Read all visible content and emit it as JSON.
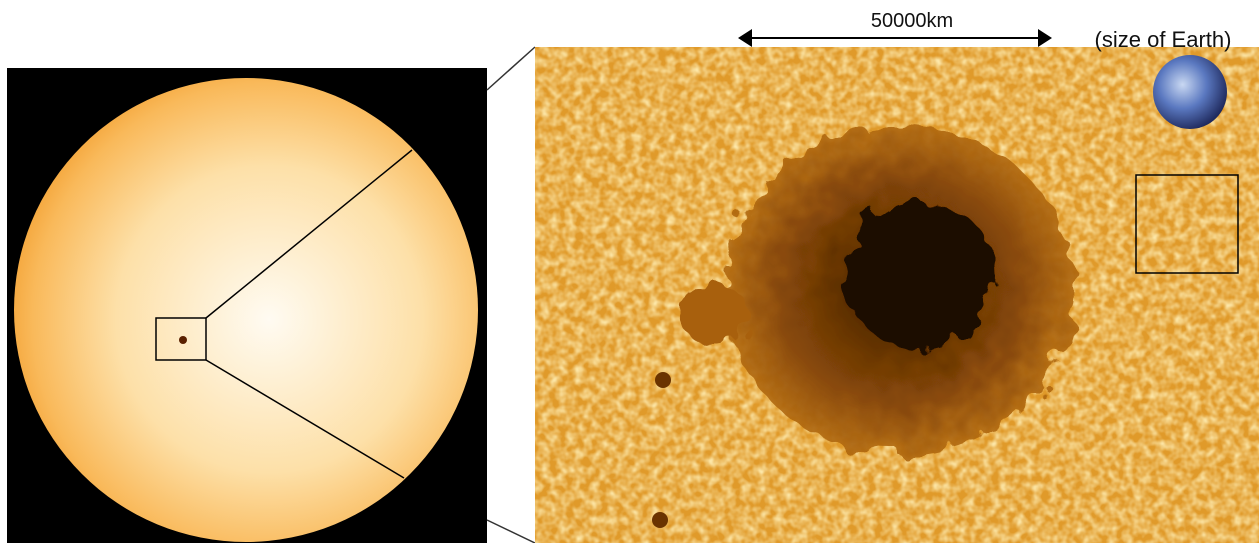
{
  "scale_bar": {
    "label": "50000km"
  },
  "earth": {
    "label": "(size of Earth)"
  }
}
